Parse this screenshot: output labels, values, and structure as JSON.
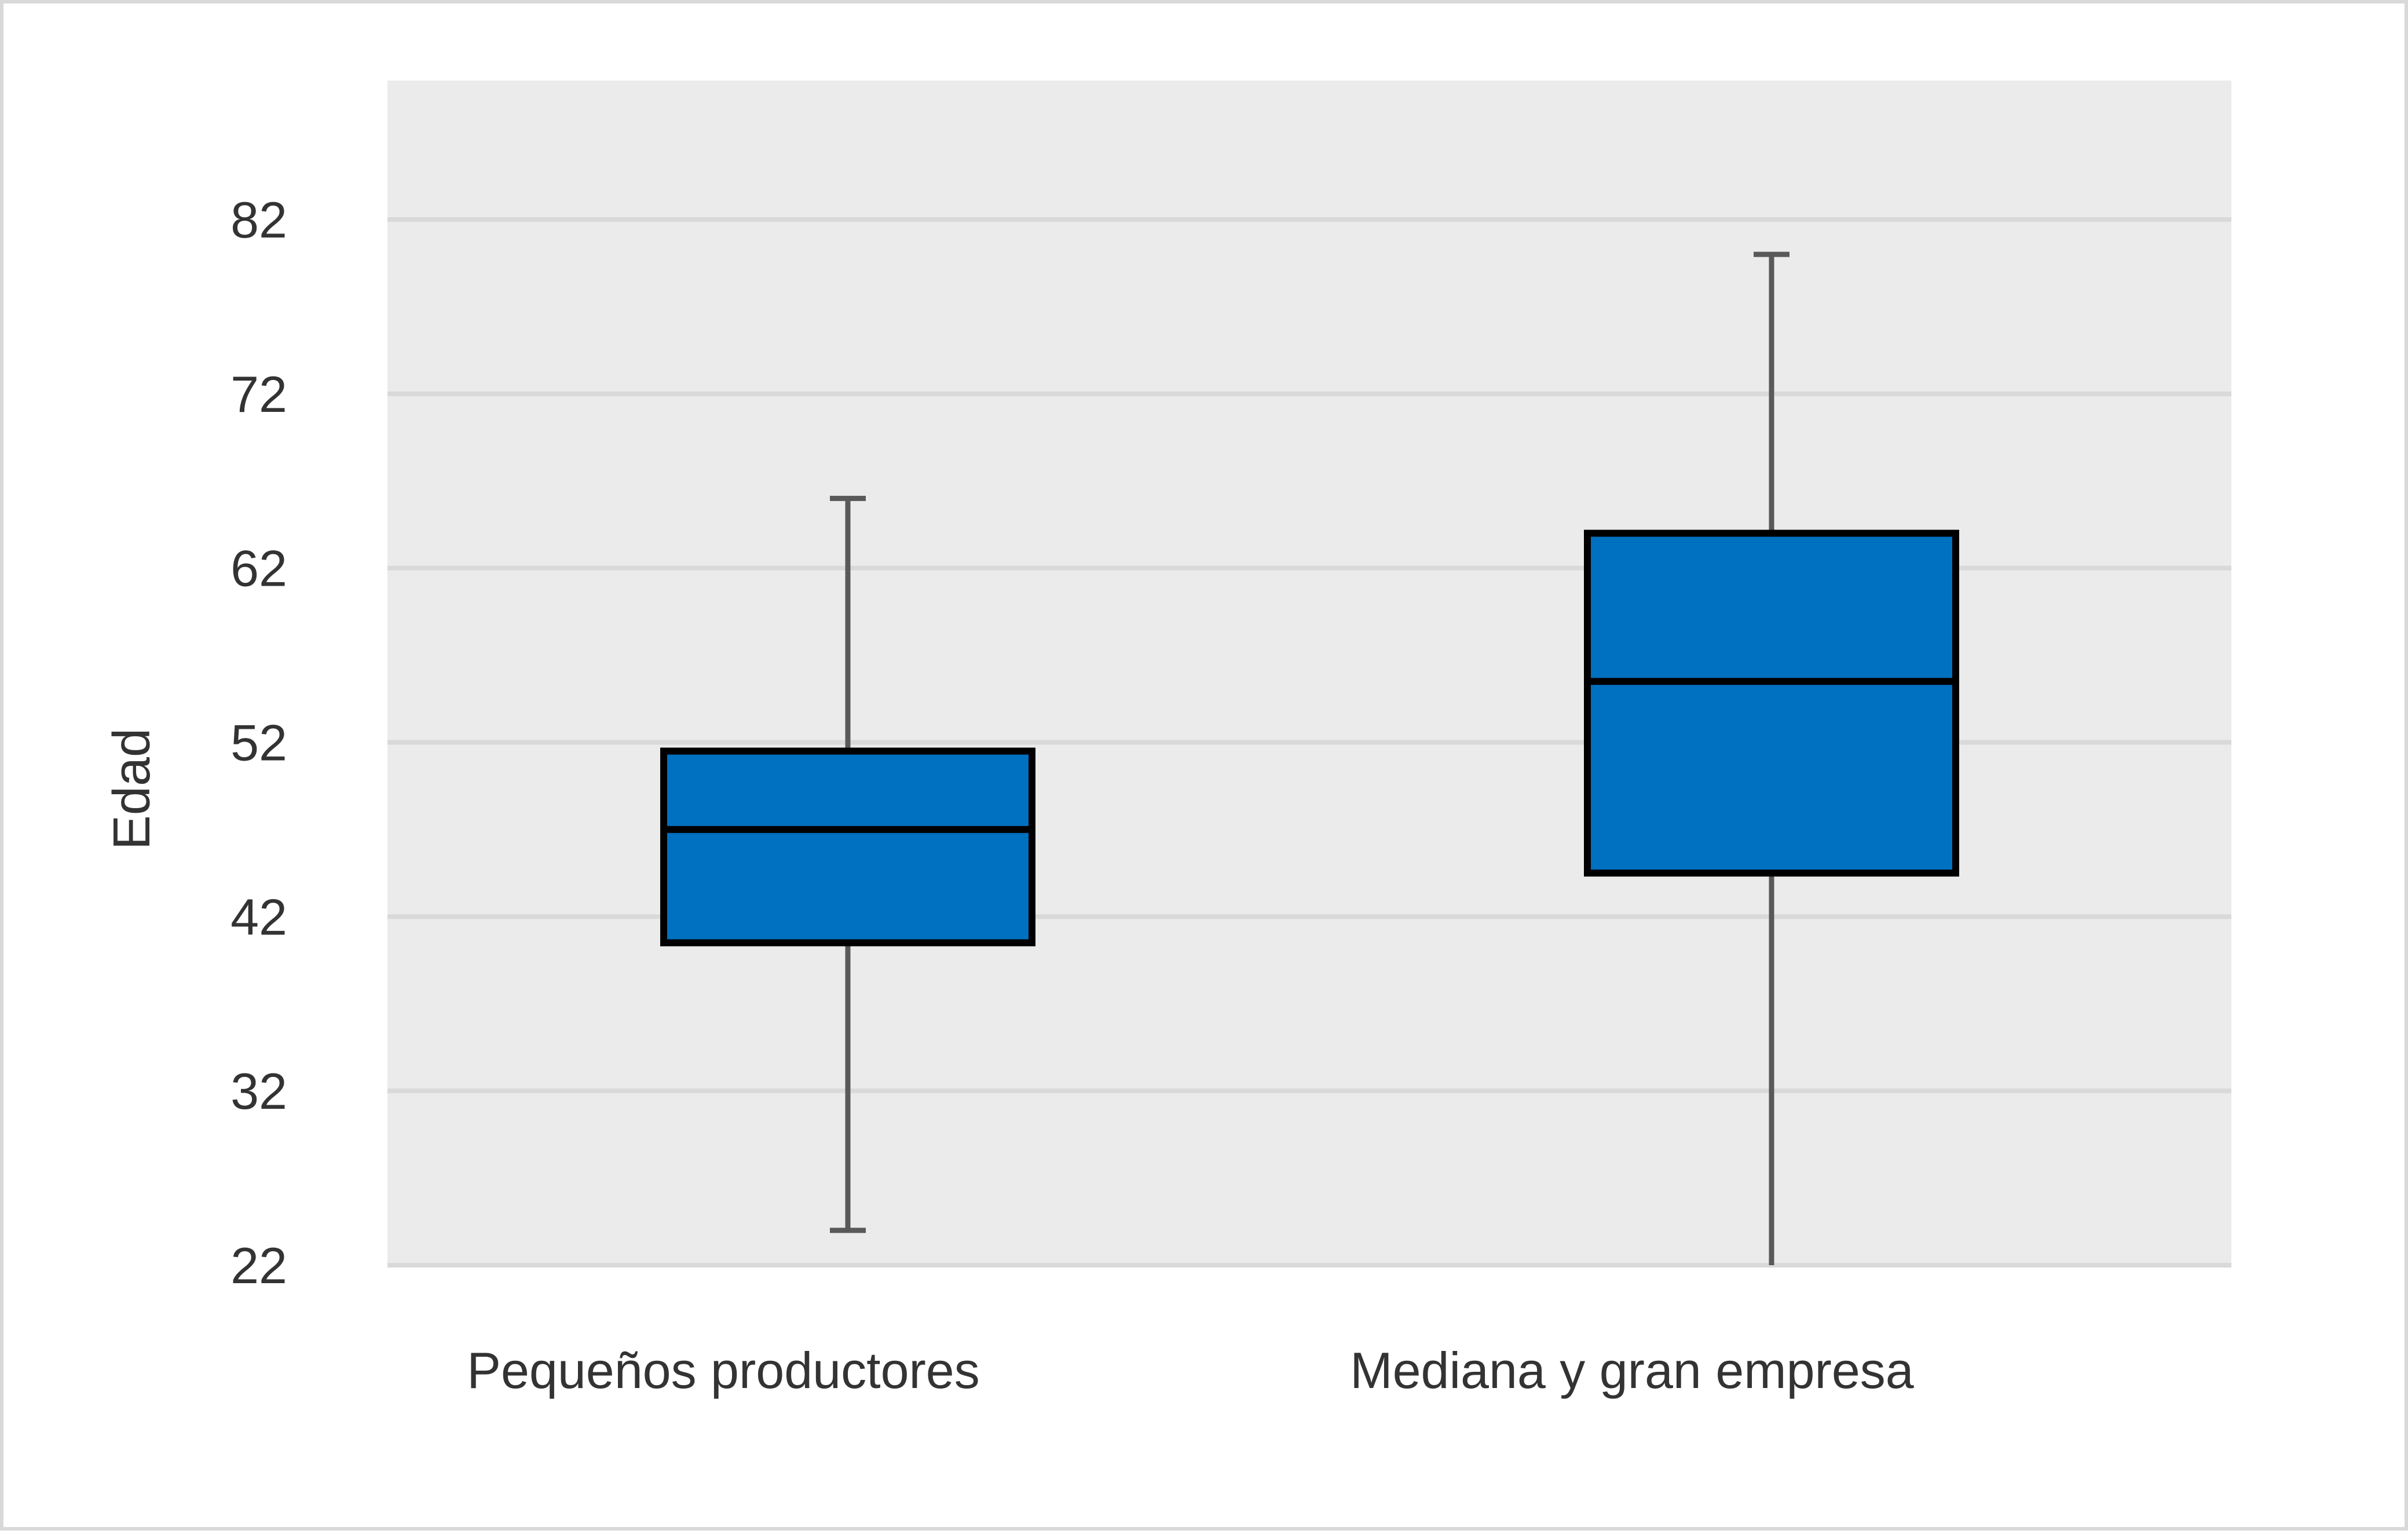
{
  "chart_data": {
    "type": "boxplot",
    "title": "",
    "xlabel": "",
    "ylabel": "Edad",
    "ylim": [
      22,
      88
    ],
    "yticks": [
      22,
      32,
      42,
      52,
      62,
      72,
      82
    ],
    "grid": true,
    "legend": "none",
    "colors": {
      "plot_background": "#ebebeb",
      "grid": "#d9d9d9",
      "box_fill": "#0070c0",
      "box_stroke": "#000000",
      "whisker": "#595959",
      "text": "#333333"
    },
    "categories": [
      "Pequeños productores",
      "Mediana y gran empresa"
    ],
    "boxes": [
      {
        "category": "Pequeños productores",
        "min": 24,
        "q1": 40.5,
        "median": 47,
        "q3": 51.5,
        "max": 66
      },
      {
        "category": "Mediana y gran empresa",
        "min": 22,
        "q1": 44.5,
        "median": 55.5,
        "q3": 64,
        "max": 80
      }
    ]
  }
}
